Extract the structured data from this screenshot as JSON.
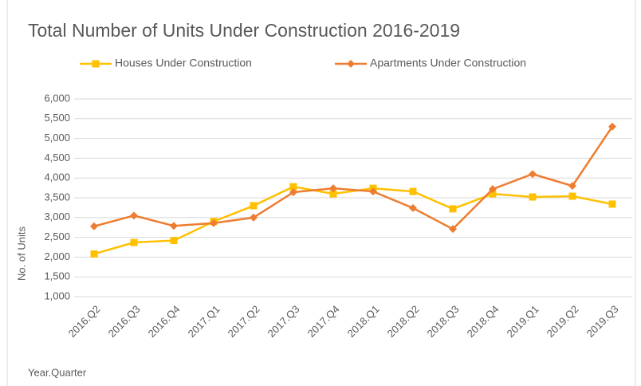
{
  "chart_data": {
    "type": "line",
    "title": "Total Number of Units Under Construction 2016-2019",
    "x_label": "Year.Quarter",
    "y_label": "No. of Units",
    "categories": [
      "2016.Q2",
      "2016.Q3",
      "2016.Q4",
      "2017.Q1",
      "2017.Q2",
      "2017.Q3",
      "2017.Q4",
      "2018.Q1",
      "2018.Q2",
      "2018.Q3",
      "2018.Q4",
      "2019.Q1",
      "2019.Q2",
      "2019.Q3"
    ],
    "series": [
      {
        "name": "Houses Under Construction",
        "color": "#ffc000",
        "marker": "square",
        "values": [
          2080,
          2370,
          2420,
          2900,
          3300,
          3780,
          3600,
          3740,
          3660,
          3220,
          3600,
          3520,
          3540,
          3340
        ]
      },
      {
        "name": "Apartments Under Construction",
        "color": "#ed7d31",
        "marker": "diamond",
        "values": [
          2780,
          3050,
          2790,
          2860,
          3000,
          3640,
          3740,
          3660,
          3240,
          2710,
          3720,
          4100,
          3800,
          5300
        ]
      }
    ],
    "ylim": [
      1000,
      6000
    ],
    "yticks": [
      {
        "value": 1000,
        "label": "1,000"
      },
      {
        "value": 1500,
        "label": "1,500"
      },
      {
        "value": 2000,
        "label": "2,000"
      },
      {
        "value": 2500,
        "label": "2,500"
      },
      {
        "value": 3000,
        "label": "3,000"
      },
      {
        "value": 3500,
        "label": "3,500"
      },
      {
        "value": 4000,
        "label": "4,000"
      },
      {
        "value": 4500,
        "label": "4,500"
      },
      {
        "value": 5000,
        "label": "5,000"
      },
      {
        "value": 5500,
        "label": "5,500"
      },
      {
        "value": 6000,
        "label": "6,000"
      }
    ],
    "grid": true,
    "legend": "top"
  }
}
